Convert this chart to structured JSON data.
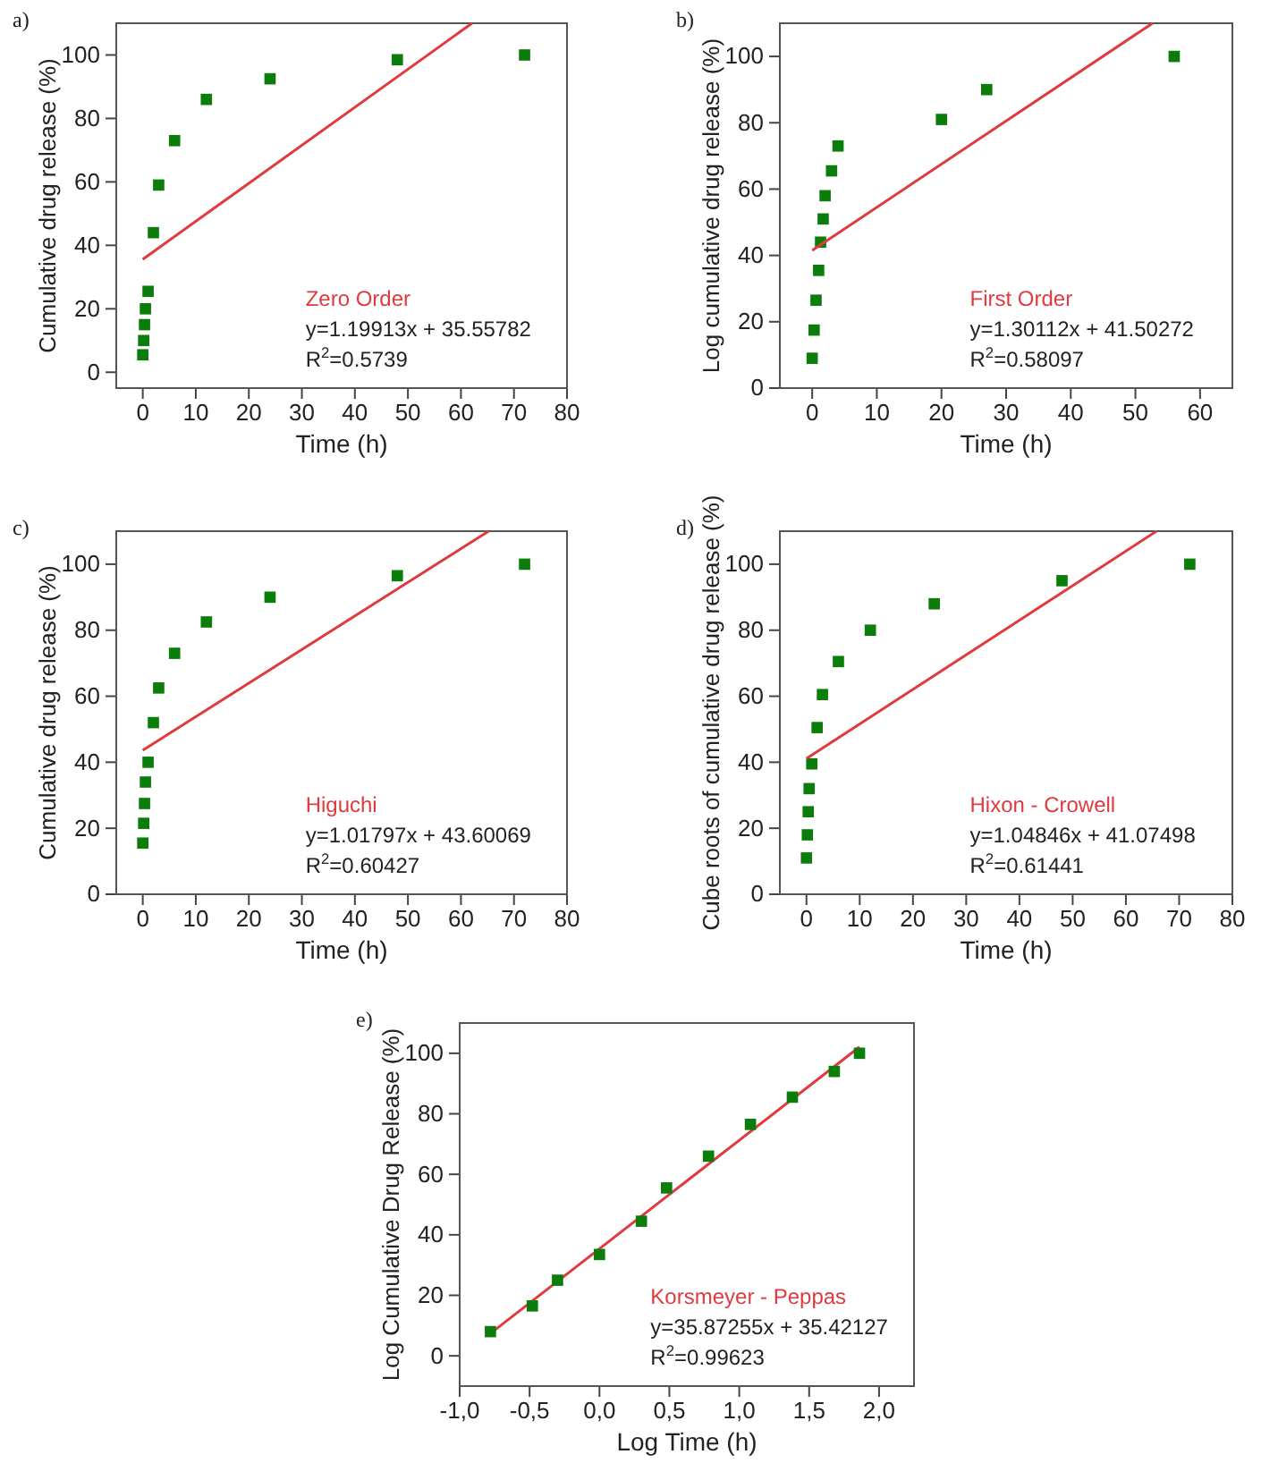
{
  "chart_data": [
    {
      "type": "scatter",
      "title": "a)",
      "xlabel": "Time (h)",
      "ylabel": "Cumulative drug release (%)",
      "xlim": [
        -5,
        80
      ],
      "ylim": [
        -5,
        110
      ],
      "xticks": [
        0,
        10,
        20,
        30,
        40,
        50,
        60,
        70,
        80
      ],
      "yticks": [
        0,
        20,
        40,
        60,
        80,
        100
      ],
      "grid": false,
      "series": [
        {
          "marker": "square",
          "color": "#0a7d0a",
          "x": [
            0,
            0.17,
            0.33,
            0.5,
            1,
            2,
            3,
            6,
            12,
            24,
            48,
            72
          ],
          "values": [
            5.5,
            10,
            15,
            20,
            25.5,
            44,
            59,
            73,
            86,
            92.5,
            98.5,
            100
          ]
        },
        {
          "type": "line",
          "color": "#e0393e",
          "x": [
            0,
            62.08
          ],
          "values": [
            35.6,
            110
          ]
        }
      ],
      "annotations": [
        "Zero Order",
        "y=1.19913x + 35.55782",
        "R$^{2}$=0.5739"
      ]
    },
    {
      "type": "scatter",
      "title": "b)",
      "xlabel": "Time (h)",
      "ylabel": "Log cumulative drug release (%)",
      "xlim": [
        -5,
        65
      ],
      "ylim": [
        0,
        110
      ],
      "xticks": [
        0,
        10,
        20,
        30,
        40,
        50,
        60
      ],
      "yticks": [
        0,
        20,
        40,
        60,
        80,
        100
      ],
      "grid": false,
      "series": [
        {
          "marker": "square",
          "color": "#0a7d0a",
          "x": [
            0,
            0.3,
            0.6,
            1,
            1.3,
            1.7,
            2,
            3,
            4,
            20,
            27,
            56
          ],
          "values": [
            9,
            17.5,
            26.5,
            35.5,
            44,
            51,
            58,
            65.5,
            73,
            81,
            90,
            100
          ]
        },
        {
          "type": "line",
          "color": "#e0393e",
          "x": [
            0,
            52.65
          ],
          "values": [
            41.5,
            110
          ]
        }
      ],
      "annotations": [
        "First Order",
        "y=1.30112x + 41.50272",
        "R$^{2}$=0.58097"
      ]
    },
    {
      "type": "scatter",
      "title": "c)",
      "xlabel": "Time (h)",
      "ylabel": "Cumulative drug release (%)",
      "xlim": [
        -5,
        80
      ],
      "ylim": [
        0,
        110
      ],
      "xticks": [
        0,
        10,
        20,
        30,
        40,
        50,
        60,
        70,
        80
      ],
      "yticks": [
        0,
        20,
        40,
        60,
        80,
        100
      ],
      "grid": false,
      "series": [
        {
          "marker": "square",
          "color": "#0a7d0a",
          "x": [
            0,
            0.17,
            0.33,
            0.5,
            1,
            2,
            3,
            6,
            12,
            24,
            48,
            72
          ],
          "values": [
            15.5,
            21.5,
            27.5,
            34,
            40,
            52,
            62.5,
            73,
            82.5,
            90,
            96.5,
            100
          ]
        },
        {
          "type": "line",
          "color": "#e0393e",
          "x": [
            0,
            65.23
          ],
          "values": [
            43.6,
            110
          ]
        }
      ],
      "annotations": [
        "Higuchi",
        "y=1.01797x + 43.60069",
        "R$^{2}$=0.60427"
      ]
    },
    {
      "type": "scatter",
      "title": "d)",
      "xlabel": "Time (h)",
      "ylabel": "Cube roots of cumulative drug release (%)",
      "xlim": [
        -5,
        80
      ],
      "ylim": [
        0,
        110
      ],
      "xticks": [
        0,
        10,
        20,
        30,
        40,
        50,
        60,
        70,
        80
      ],
      "yticks": [
        0,
        20,
        40,
        60,
        80,
        100
      ],
      "grid": false,
      "series": [
        {
          "marker": "square",
          "color": "#0a7d0a",
          "x": [
            0,
            0.17,
            0.33,
            0.5,
            1,
            2,
            3,
            6,
            12,
            24,
            48,
            72
          ],
          "values": [
            11,
            18,
            25,
            32,
            39.5,
            50.5,
            60.5,
            70.5,
            80,
            88,
            95,
            100
          ]
        },
        {
          "type": "line",
          "color": "#e0393e",
          "x": [
            0,
            65.74
          ],
          "values": [
            41.1,
            110
          ]
        }
      ],
      "annotations": [
        "Hixon - Crowell",
        "y=1.04846x + 41.07498",
        "R$^{2}$=0.61441"
      ]
    },
    {
      "type": "scatter",
      "title": "e)",
      "xlabel": "Log Time (h)",
      "ylabel": "Log Cumulative Drug Release (%)",
      "xlim": [
        -1,
        2.25
      ],
      "ylim": [
        -10,
        110
      ],
      "xticks": [
        {
          "value": -1,
          "label": "-1,0"
        },
        {
          "value": -0.5,
          "label": "-0,5"
        },
        {
          "value": 0,
          "label": "0,0"
        },
        {
          "value": 0.5,
          "label": "0,5"
        },
        {
          "value": 1,
          "label": "1,0"
        },
        {
          "value": 1.5,
          "label": "1,5"
        },
        {
          "value": 2,
          "label": "2,0"
        }
      ],
      "yticks": [
        0,
        20,
        40,
        60,
        80,
        100
      ],
      "grid": false,
      "series": [
        {
          "type": "line",
          "color": "#e0393e",
          "x": [
            -0.78,
            1.86
          ],
          "values": [
            7.4,
            102.1
          ]
        },
        {
          "marker": "square",
          "color": "#0a7d0a",
          "x": [
            -0.78,
            -0.48,
            -0.3,
            0,
            0.3,
            0.48,
            0.78,
            1.08,
            1.38,
            1.68,
            1.86
          ],
          "values": [
            8,
            16.5,
            25,
            33.5,
            44.5,
            55.5,
            66,
            76.5,
            85.5,
            94,
            100
          ]
        }
      ],
      "annotations": [
        "Korsmeyer - Peppas",
        "y=35.87255x + 35.42127",
        "R$^{2}$=0.99623"
      ]
    }
  ]
}
